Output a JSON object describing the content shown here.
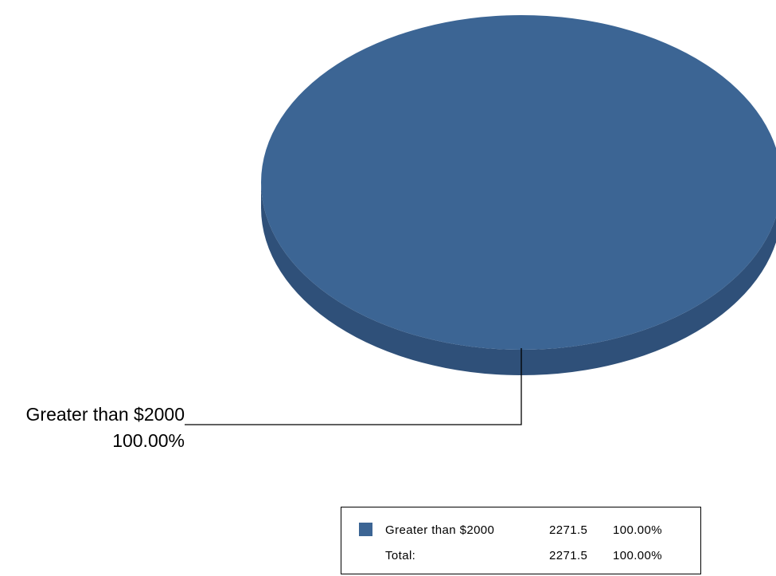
{
  "chart_data": {
    "type": "pie",
    "style": "3d",
    "slices": [
      {
        "label": "Greater than $2000",
        "value": 2271.5,
        "percent": "100.00%",
        "color": "#3c6594",
        "side_color": "#2f5079"
      }
    ],
    "slice_label": {
      "name": "Greater than $2000",
      "percent": "100.00%"
    },
    "legend": {
      "placement": "bottom-right",
      "rows": [
        {
          "label": "Greater than $2000",
          "value": "2271.5",
          "percent": "100.00%",
          "swatch": true
        },
        {
          "label": "Total:",
          "value": "2271.5",
          "percent": "100.00%",
          "swatch": false
        }
      ]
    }
  }
}
